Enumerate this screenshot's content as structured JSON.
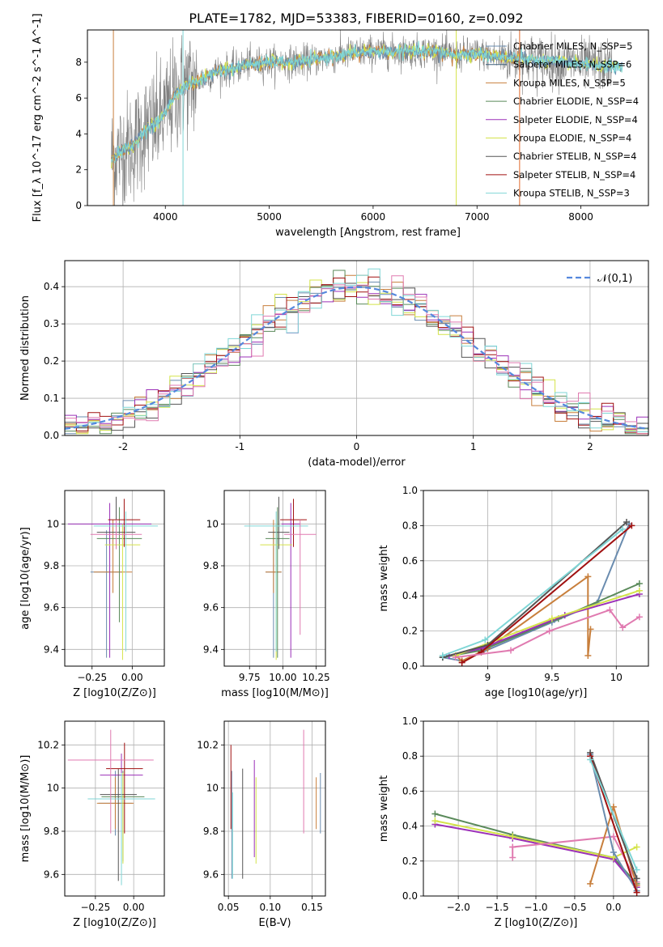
{
  "title": "PLATE=1782, MJD=53383, FIBERID=0160, z=0.092",
  "series_colors": {
    "Chabrier MILES": "#6a8caf",
    "Salpeter MILES": "#3b5f7a",
    "Kroupa MILES": "#c87f3c",
    "Chabrier ELODIE": "#5a8a5a",
    "Salpeter ELODIE": "#9b30b8",
    "Kroupa ELODIE": "#d4e34a",
    "Chabrier STELIB": "#555555",
    "Salpeter STELIB": "#a01010",
    "Kroupa STELIB": "#7fd6d6",
    "pink": "#e07ab0",
    "data": "#808080",
    "normal": "#5588dd"
  },
  "chart_data": [
    {
      "id": "spectrum",
      "type": "line",
      "xlabel": "wavelength [Angstrom, rest frame]",
      "ylabel": "Flux [f_λ 10^-17 erg cm^-2 s^-1 A^-1]",
      "xlim": [
        3250,
        8650
      ],
      "ylim": [
        0,
        9.8
      ],
      "xticks": [
        4000,
        5000,
        6000,
        7000,
        8000
      ],
      "yticks": [
        0,
        2,
        4,
        6,
        8
      ],
      "legend_position": "right",
      "legend": [
        {
          "label": "Chabrier MILES, N_SSP=5",
          "color": "#6a8caf"
        },
        {
          "label": "Salpeter MILES, N_SSP=6",
          "color": "#3b5f7a"
        },
        {
          "label": "Kroupa MILES, N_SSP=5",
          "color": "#c87f3c"
        },
        {
          "label": "Chabrier ELODIE, N_SSP=4",
          "color": "#5a8a5a"
        },
        {
          "label": "Salpeter ELODIE, N_SSP=4",
          "color": "#9b30b8"
        },
        {
          "label": "Kroupa ELODIE, N_SSP=4",
          "color": "#d4e34a"
        },
        {
          "label": "Chabrier STELIB, N_SSP=4",
          "color": "#555555"
        },
        {
          "label": "Salpeter STELIB, N_SSP=4",
          "color": "#a01010"
        },
        {
          "label": "Kroupa STELIB, N_SSP=3",
          "color": "#7fd6d6"
        }
      ],
      "model_continuum": [
        [
          3480,
          2.6
        ],
        [
          3600,
          3.1
        ],
        [
          3700,
          3.4
        ],
        [
          3800,
          4.2
        ],
        [
          3900,
          4.5
        ],
        [
          4000,
          5.2
        ],
        [
          4100,
          6.2
        ],
        [
          4200,
          6.7
        ],
        [
          4300,
          6.9
        ],
        [
          4400,
          7.2
        ],
        [
          4500,
          7.5
        ],
        [
          4600,
          7.6
        ],
        [
          4700,
          7.7
        ],
        [
          4800,
          7.9
        ],
        [
          5000,
          8.0
        ],
        [
          5200,
          8.0
        ],
        [
          5400,
          8.1
        ],
        [
          5600,
          8.3
        ],
        [
          5800,
          8.5
        ],
        [
          6000,
          8.6
        ],
        [
          6200,
          8.6
        ],
        [
          6400,
          8.6
        ],
        [
          6600,
          8.6
        ],
        [
          6800,
          8.4
        ],
        [
          7000,
          8.5
        ],
        [
          7200,
          8.3
        ],
        [
          7400,
          8.2
        ],
        [
          7600,
          8.1
        ],
        [
          7800,
          8.0
        ],
        [
          8000,
          7.9
        ],
        [
          8200,
          7.8
        ],
        [
          8400,
          7.7
        ]
      ]
    },
    {
      "id": "residuals",
      "type": "histogram",
      "xlabel": "(data-model)/error",
      "ylabel": "Normed distribution",
      "xlim": [
        -2.5,
        2.5
      ],
      "ylim": [
        0,
        0.47
      ],
      "xticks": [
        -2,
        -1,
        0,
        1,
        2
      ],
      "yticks": [
        0.0,
        0.1,
        0.2,
        0.3,
        0.4
      ],
      "grid": true,
      "legend_position": "top-right",
      "legend": [
        {
          "label": "𝒩(0,1)",
          "color": "#5588dd",
          "style": "dashed"
        }
      ],
      "bin_width": 0.1
    },
    {
      "id": "age_vs_Z",
      "type": "errorbar",
      "xlabel": "Z [log10(Z/Z⊙)]",
      "ylabel": "age [log10(age/yr)]",
      "xlim": [
        -0.42,
        0.2
      ],
      "ylim": [
        9.32,
        10.16
      ],
      "xticks": [
        -0.25,
        0.0
      ],
      "xticklabels": [
        "−0.25",
        "0.00"
      ],
      "yticks": [
        9.4,
        9.6,
        9.8,
        10.0
      ],
      "grid": true,
      "points": [
        {
          "x": -0.16,
          "y": 9.77,
          "xerr": 0.1,
          "yerr_lo": 0.41,
          "yerr_hi": 0.2,
          "color": "#6a8caf"
        },
        {
          "x": -0.12,
          "y": 9.77,
          "xerr": 0.12,
          "yerr_lo": 0.1,
          "yerr_hi": 0.25,
          "color": "#c87f3c"
        },
        {
          "x": -0.08,
          "y": 9.93,
          "xerr": 0.14,
          "yerr_lo": 0.4,
          "yerr_hi": 0.15,
          "color": "#5a8a5a"
        },
        {
          "x": -0.14,
          "y": 10.0,
          "xerr": 0.26,
          "yerr_lo": 0.64,
          "yerr_hi": 0.1,
          "color": "#9b30b8"
        },
        {
          "x": -0.06,
          "y": 9.9,
          "xerr": 0.11,
          "yerr_lo": 0.55,
          "yerr_hi": 0.1,
          "color": "#d4e34a"
        },
        {
          "x": -0.1,
          "y": 9.96,
          "xerr": 0.12,
          "yerr_lo": 0.08,
          "yerr_hi": 0.17,
          "color": "#555555"
        },
        {
          "x": -0.05,
          "y": 10.02,
          "xerr": 0.1,
          "yerr_lo": 0.13,
          "yerr_hi": 0.1,
          "color": "#a01010"
        },
        {
          "x": -0.04,
          "y": 9.99,
          "xerr": 0.2,
          "yerr_lo": 0.6,
          "yerr_hi": 0.07,
          "color": "#7fd6d6"
        },
        {
          "x": -0.1,
          "y": 9.95,
          "xerr": 0.16,
          "yerr_lo": 0.07,
          "yerr_hi": 0.07,
          "color": "#e07ab0"
        }
      ]
    },
    {
      "id": "age_vs_mass",
      "type": "errorbar",
      "xlabel": "mass [log10(M/M⊙)]",
      "ylabel": "",
      "xlim": [
        9.56,
        10.32
      ],
      "ylim": [
        9.32,
        10.16
      ],
      "xticks": [
        9.75,
        10.0,
        10.25
      ],
      "xticklabels": [
        "9.75",
        "10.00",
        "10.25"
      ],
      "yticks": [
        9.4,
        9.6,
        9.8,
        10.0
      ],
      "grid": true,
      "points": [
        {
          "x": 9.93,
          "y": 9.77,
          "xerr": 0.06,
          "yerr_lo": 0.41,
          "yerr_hi": 0.2,
          "color": "#6a8caf"
        },
        {
          "x": 9.93,
          "y": 9.77,
          "xerr": 0.06,
          "yerr_lo": 0.1,
          "yerr_hi": 0.25,
          "color": "#c87f3c"
        },
        {
          "x": 9.96,
          "y": 9.93,
          "xerr": 0.09,
          "yerr_lo": 0.57,
          "yerr_hi": 0.15,
          "color": "#5a8a5a"
        },
        {
          "x": 10.06,
          "y": 10.0,
          "xerr": 0.07,
          "yerr_lo": 0.64,
          "yerr_hi": 0.1,
          "color": "#9b30b8"
        },
        {
          "x": 9.95,
          "y": 9.9,
          "xerr": 0.12,
          "yerr_lo": 0.55,
          "yerr_hi": 0.1,
          "color": "#d4e34a"
        },
        {
          "x": 9.97,
          "y": 9.96,
          "xerr": 0.08,
          "yerr_lo": 0.08,
          "yerr_hi": 0.17,
          "color": "#555555"
        },
        {
          "x": 10.08,
          "y": 10.02,
          "xerr": 0.1,
          "yerr_lo": 0.13,
          "yerr_hi": 0.1,
          "color": "#a01010"
        },
        {
          "x": 9.95,
          "y": 9.99,
          "xerr": 0.24,
          "yerr_lo": 0.6,
          "yerr_hi": 0.07,
          "color": "#7fd6d6"
        },
        {
          "x": 10.13,
          "y": 9.95,
          "xerr": 0.12,
          "yerr_lo": 0.48,
          "yerr_hi": 0.07,
          "color": "#e07ab0"
        }
      ]
    },
    {
      "id": "weight_vs_age",
      "type": "line",
      "xlabel": "age [log10(age/yr)]",
      "ylabel": "mass weight",
      "xlim": [
        8.5,
        10.25
      ],
      "ylim": [
        0,
        1.0
      ],
      "xticks": [
        9.0,
        9.5,
        10.0
      ],
      "yticks": [
        0.0,
        0.2,
        0.4,
        0.6,
        0.8,
        1.0
      ],
      "grid": true,
      "series": [
        {
          "color": "#6a8caf",
          "points": [
            [
              8.65,
              0.05
            ],
            [
              8.8,
              0.03
            ],
            [
              9.5,
              0.25
            ],
            [
              9.85,
              0.36
            ],
            [
              10.1,
              0.81
            ]
          ]
        },
        {
          "color": "#c87f3c",
          "points": [
            [
              8.75,
              0.06
            ],
            [
              8.8,
              0.03
            ],
            [
              9.0,
              0.1
            ],
            [
              9.78,
              0.51
            ],
            [
              9.78,
              0.06
            ],
            [
              9.8,
              0.21
            ]
          ]
        },
        {
          "color": "#5a8a5a",
          "points": [
            [
              8.65,
              0.05
            ],
            [
              8.95,
              0.09
            ],
            [
              9.55,
              0.27
            ],
            [
              10.18,
              0.47
            ]
          ]
        },
        {
          "color": "#9b30b8",
          "points": [
            [
              8.7,
              0.06
            ],
            [
              8.95,
              0.1
            ],
            [
              9.6,
              0.29
            ],
            [
              10.18,
              0.41
            ]
          ]
        },
        {
          "color": "#d4e34a",
          "points": [
            [
              8.75,
              0.06
            ],
            [
              9.5,
              0.27
            ],
            [
              10.18,
              0.43
            ]
          ]
        },
        {
          "color": "#555555",
          "points": [
            [
              8.65,
              0.05
            ],
            [
              9.0,
              0.12
            ],
            [
              10.08,
              0.82
            ]
          ]
        },
        {
          "color": "#a01010",
          "points": [
            [
              8.8,
              0.02
            ],
            [
              8.95,
              0.08
            ],
            [
              10.12,
              0.8
            ]
          ]
        },
        {
          "color": "#7fd6d6",
          "points": [
            [
              8.65,
              0.06
            ],
            [
              8.98,
              0.15
            ],
            [
              10.05,
              0.78
            ]
          ]
        },
        {
          "color": "#e07ab0",
          "points": [
            [
              8.75,
              0.05
            ],
            [
              9.18,
              0.09
            ],
            [
              9.48,
              0.2
            ],
            [
              9.95,
              0.32
            ],
            [
              10.05,
              0.22
            ],
            [
              10.18,
              0.28
            ]
          ]
        }
      ]
    },
    {
      "id": "mass_vs_Z",
      "type": "errorbar",
      "xlabel": "Z [log10(Z/Z⊙)]",
      "ylabel": "mass [log10(M/M⊙)]",
      "xlim": [
        -0.45,
        0.2
      ],
      "ylim": [
        9.5,
        10.31
      ],
      "xticks": [
        -0.25,
        0.0
      ],
      "xticklabels": [
        "−0.25",
        "0.00"
      ],
      "yticks": [
        9.6,
        9.8,
        10.0,
        10.2
      ],
      "grid": true,
      "points": [
        {
          "x": -0.12,
          "y": 9.93,
          "xerr": 0.11,
          "yerr_lo": 0.15,
          "yerr_hi": 0.15,
          "color": "#6a8caf"
        },
        {
          "x": -0.12,
          "y": 9.93,
          "xerr": 0.12,
          "yerr_lo": 0.12,
          "yerr_hi": 0.12,
          "color": "#c87f3c"
        },
        {
          "x": -0.07,
          "y": 9.96,
          "xerr": 0.14,
          "yerr_lo": 0.3,
          "yerr_hi": 0.12,
          "color": "#5a8a5a"
        },
        {
          "x": -0.08,
          "y": 10.06,
          "xerr": 0.14,
          "yerr_lo": 0.26,
          "yerr_hi": 0.1,
          "color": "#9b30b8"
        },
        {
          "x": -0.07,
          "y": 9.95,
          "xerr": 0.16,
          "yerr_lo": 0.3,
          "yerr_hi": 0.12,
          "color": "#d4e34a"
        },
        {
          "x": -0.1,
          "y": 9.97,
          "xerr": 0.12,
          "yerr_lo": 0.4,
          "yerr_hi": 0.12,
          "color": "#555555"
        },
        {
          "x": -0.06,
          "y": 10.09,
          "xerr": 0.12,
          "yerr_lo": 0.3,
          "yerr_hi": 0.12,
          "color": "#a01010"
        },
        {
          "x": -0.08,
          "y": 9.95,
          "xerr": 0.22,
          "yerr_lo": 0.4,
          "yerr_hi": 0.12,
          "color": "#7fd6d6"
        },
        {
          "x": -0.15,
          "y": 10.13,
          "xerr": 0.28,
          "yerr_lo": 0.34,
          "yerr_hi": 0.14,
          "color": "#e07ab0"
        }
      ]
    },
    {
      "id": "mass_vs_EBV",
      "type": "errorbar",
      "xlabel": "E(B-V)",
      "ylabel": "",
      "xlim": [
        0.045,
        0.166
      ],
      "ylim": [
        9.5,
        10.31
      ],
      "xticks": [
        0.05,
        0.1,
        0.15
      ],
      "xticklabels": [
        "0.05",
        "0.10",
        "0.15"
      ],
      "yticks": [
        9.6,
        9.8,
        10.0,
        10.2
      ],
      "grid": true,
      "points": [
        {
          "x": 0.054,
          "y": 9.93,
          "yerr_lo": 0.35,
          "yerr_hi": 0.15,
          "color": "#6a8caf"
        },
        {
          "x": 0.053,
          "y": 9.93,
          "yerr_lo": 0.12,
          "yerr_hi": 0.27,
          "color": "#a01010"
        },
        {
          "x": 0.067,
          "y": 9.85,
          "yerr_lo": 0.27,
          "yerr_hi": 0.24,
          "color": "#555555"
        },
        {
          "x": 0.081,
          "y": 9.93,
          "yerr_lo": 0.25,
          "yerr_hi": 0.2,
          "color": "#9b30b8"
        },
        {
          "x": 0.083,
          "y": 9.85,
          "yerr_lo": 0.2,
          "yerr_hi": 0.2,
          "color": "#d4e34a"
        },
        {
          "x": 0.14,
          "y": 10.03,
          "yerr_lo": 0.24,
          "yerr_hi": 0.24,
          "color": "#e07ab0"
        },
        {
          "x": 0.155,
          "y": 9.93,
          "yerr_lo": 0.12,
          "yerr_hi": 0.12,
          "color": "#c87f3c"
        },
        {
          "x": 0.16,
          "y": 9.93,
          "yerr_lo": 0.14,
          "yerr_hi": 0.14,
          "color": "#6a8caf"
        },
        {
          "x": 0.055,
          "y": 9.88,
          "yerr_lo": 0.3,
          "yerr_hi": 0.1,
          "color": "#7fd6d6"
        }
      ]
    },
    {
      "id": "weight_vs_Z",
      "type": "line",
      "xlabel": "Z [log10(Z/Z⊙)]",
      "ylabel": "mass weight",
      "xlim": [
        -2.45,
        0.45
      ],
      "ylim": [
        0,
        1.0
      ],
      "xticks": [
        -2.0,
        -1.5,
        -1.0,
        -0.5,
        0.0
      ],
      "xticklabels": [
        "−2.0",
        "−1.5",
        "−1.0",
        "−0.5",
        "0.0"
      ],
      "yticks": [
        0.0,
        0.2,
        0.4,
        0.6,
        0.8,
        1.0
      ],
      "grid": true,
      "series": [
        {
          "color": "#5a8a5a",
          "points": [
            [
              -2.3,
              0.47
            ],
            [
              -1.3,
              0.35
            ],
            [
              0.0,
              0.22
            ],
            [
              0.3,
              0.07
            ]
          ]
        },
        {
          "color": "#9b30b8",
          "points": [
            [
              -2.3,
              0.41
            ],
            [
              -1.3,
              0.33
            ],
            [
              0.0,
              0.21
            ],
            [
              0.3,
              0.05
            ]
          ]
        },
        {
          "color": "#d4e34a",
          "points": [
            [
              -2.3,
              0.43
            ],
            [
              -1.3,
              0.34
            ],
            [
              0.0,
              0.22
            ],
            [
              0.3,
              0.28
            ]
          ]
        },
        {
          "color": "#e07ab0",
          "points": [
            [
              -1.3,
              0.28
            ],
            [
              -1.3,
              0.22
            ],
            [
              -1.3,
              0.28
            ],
            [
              0.0,
              0.34
            ],
            [
              0.3,
              0.08
            ]
          ]
        },
        {
          "color": "#c87f3c",
          "points": [
            [
              -0.3,
              0.07
            ],
            [
              0.0,
              0.51
            ],
            [
              0.3,
              0.06
            ]
          ]
        },
        {
          "color": "#6a8caf",
          "points": [
            [
              -0.3,
              0.81
            ],
            [
              0.0,
              0.25
            ],
            [
              0.3,
              0.03
            ]
          ]
        },
        {
          "color": "#555555",
          "points": [
            [
              -0.3,
              0.82
            ],
            [
              0.3,
              0.1
            ]
          ]
        },
        {
          "color": "#a01010",
          "points": [
            [
              -0.3,
              0.8
            ],
            [
              0.3,
              0.02
            ]
          ]
        },
        {
          "color": "#7fd6d6",
          "points": [
            [
              -0.3,
              0.78
            ],
            [
              0.3,
              0.15
            ]
          ]
        }
      ]
    }
  ]
}
